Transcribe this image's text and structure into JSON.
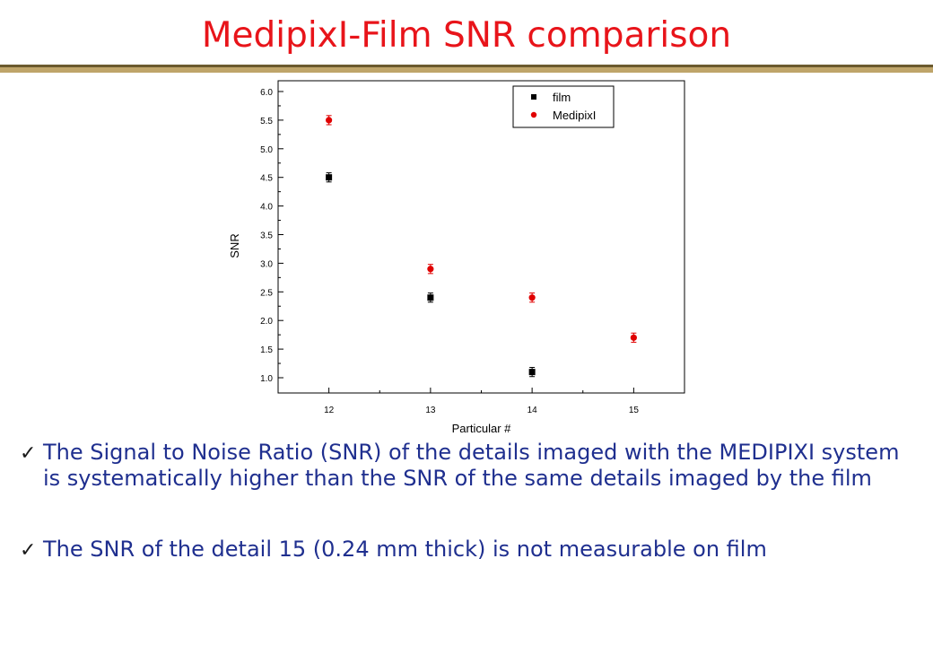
{
  "title": "MedipixI-Film SNR comparison",
  "colors": {
    "title": "#e8141a",
    "text": "#1f2f8f",
    "rule_dark": "#6b5a2e",
    "rule_light": "#bfa56a",
    "film": "#000000",
    "medipix": "#e00000"
  },
  "chart_data": {
    "type": "scatter",
    "xlabel": "Particular #",
    "ylabel": "SNR",
    "xlim": [
      11.5,
      15.5
    ],
    "ylim": [
      0.8,
      6.0
    ],
    "xticks": [
      12,
      13,
      14,
      15
    ],
    "xtick_labels": [
      "12",
      "13",
      "14",
      "15"
    ],
    "yticks": [
      1.0,
      1.5,
      2.0,
      2.5,
      3.0,
      3.5,
      4.0,
      4.5,
      5.0,
      5.5,
      6.0
    ],
    "ytick_labels": [
      "1.0",
      "1.5",
      "2.0",
      "2.5",
      "3.0",
      "3.5",
      "4.0",
      "4.5",
      "5.0",
      "5.5",
      "6.0"
    ],
    "grid": false,
    "legend_position": "top-right",
    "series": [
      {
        "name": "film",
        "marker": "square",
        "color": "#000000",
        "x": [
          12,
          13,
          14
        ],
        "y": [
          4.5,
          2.4,
          1.1
        ],
        "yerr": [
          0.08,
          0.08,
          0.08
        ]
      },
      {
        "name": "MedipixI",
        "marker": "circle",
        "color": "#e00000",
        "x": [
          12,
          13,
          14,
          15
        ],
        "y": [
          5.5,
          2.9,
          2.4,
          1.7
        ],
        "yerr": [
          0.08,
          0.08,
          0.08,
          0.08
        ]
      }
    ]
  },
  "bullets": [
    {
      "icon": "check-icon",
      "glyph": "✓",
      "text": "The Signal to Noise Ratio (SNR) of the details imaged with the MEDIPIXI system is systematically higher than the SNR of the same details imaged by the film"
    },
    {
      "icon": "check-icon",
      "glyph": "✓",
      "text": "The SNR of the detail 15 (0.24 mm thick) is not measurable on film"
    }
  ]
}
